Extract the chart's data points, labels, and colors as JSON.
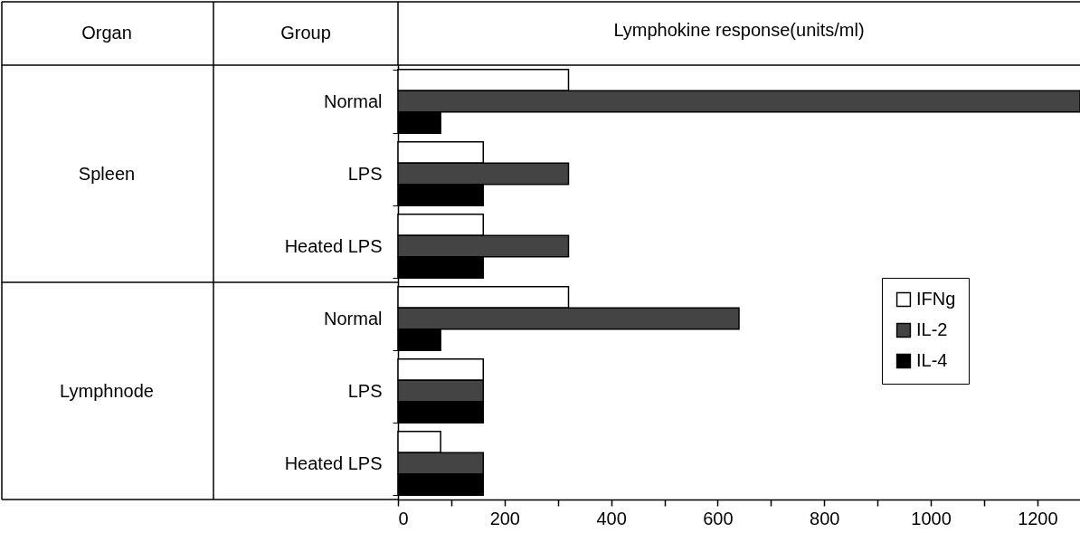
{
  "chart_data": {
    "type": "bar",
    "orientation": "horizontal",
    "title": "Lymphokine response(units/ml)",
    "categories": [
      "Normal",
      "LPS",
      "Heated LPS",
      "Normal",
      "LPS",
      "Heated LPS"
    ],
    "series": [
      {
        "name": "IFNg",
        "color": "#ffffff",
        "values": [
          320,
          160,
          160,
          320,
          160,
          80
        ]
      },
      {
        "name": "IL-2",
        "color": "#444444",
        "values": [
          1280,
          320,
          320,
          640,
          160,
          160
        ]
      },
      {
        "name": "IL-4",
        "color": "#000000",
        "values": [
          80,
          160,
          160,
          80,
          160,
          160
        ]
      }
    ],
    "xlim": [
      0,
      1280
    ],
    "xticks": [
      0,
      {
        "value": 100,
        "label": null
      },
      200,
      {
        "value": 300,
        "label": null
      },
      400,
      {
        "value": 500,
        "label": null
      },
      600,
      {
        "value": 700,
        "label": null
      },
      800,
      {
        "value": 900,
        "label": null
      },
      1000,
      {
        "value": 1100,
        "label": null
      },
      1200
    ],
    "legend": "right",
    "annotations": [
      "Organ",
      "Group",
      "Spleen",
      "Lymphnode"
    ]
  }
}
